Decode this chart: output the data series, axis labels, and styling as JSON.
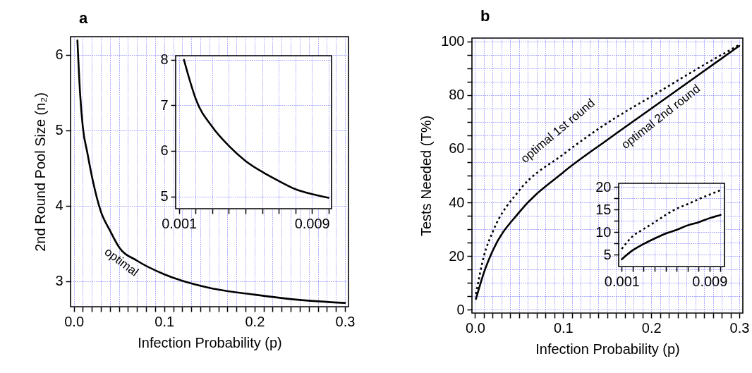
{
  "chart_data": [
    {
      "type": "line",
      "title": "a",
      "xlabel": "Infection Probability (p)",
      "ylabel": "2nd Round Pool Size (n₂)",
      "grid": true,
      "xlim": [
        -0.0036,
        0.3039
      ],
      "ylim": [
        2.66,
        6.24
      ],
      "xticks": [
        {
          "value": 0,
          "label": "0.0"
        },
        {
          "value": 0.01,
          "label": null
        },
        {
          "value": 0.02,
          "label": null
        },
        {
          "value": 0.03,
          "label": null
        },
        {
          "value": 0.04,
          "label": null
        },
        {
          "value": 0.05,
          "label": null
        },
        {
          "value": 0.06,
          "label": null
        },
        {
          "value": 0.07,
          "label": null
        },
        {
          "value": 0.08,
          "label": null
        },
        {
          "value": 0.09,
          "label": null
        },
        0.1,
        {
          "value": 0.11,
          "label": null
        },
        {
          "value": 0.12,
          "label": null
        },
        {
          "value": 0.13,
          "label": null
        },
        {
          "value": 0.14,
          "label": null
        },
        {
          "value": 0.15,
          "label": null
        },
        {
          "value": 0.16,
          "label": null
        },
        {
          "value": 0.17,
          "label": null
        },
        {
          "value": 0.18,
          "label": null
        },
        {
          "value": 0.19,
          "label": null
        },
        0.2,
        {
          "value": 0.21,
          "label": null
        },
        {
          "value": 0.22,
          "label": null
        },
        {
          "value": 0.23,
          "label": null
        },
        {
          "value": 0.24,
          "label": null
        },
        {
          "value": 0.25,
          "label": null
        },
        {
          "value": 0.26,
          "label": null
        },
        {
          "value": 0.27,
          "label": null
        },
        {
          "value": 0.28,
          "label": null
        },
        {
          "value": 0.29,
          "label": null
        },
        0.3
      ],
      "yticks": [
        3,
        4,
        5,
        6
      ],
      "series": [
        {
          "color": "#000000",
          "line_style": "solid",
          "x": [
            0.004,
            0.007,
            0.01,
            0.015,
            0.02,
            0.03,
            0.04,
            0.05,
            0.07,
            0.1,
            0.15,
            0.2,
            0.25,
            0.3
          ],
          "values": [
            6.19,
            5.48,
            5.04,
            4.7,
            4.39,
            3.92,
            3.67,
            3.45,
            3.27,
            3.09,
            2.91,
            2.82,
            2.75,
            2.71
          ]
        }
      ],
      "annotations": [
        "optimal"
      ]
    },
    {
      "type": "line",
      "grid": true,
      "xlim": [
        0.0008,
        0.01018
      ],
      "ylim": [
        4.73,
        8.09
      ],
      "xticks": [
        0.001,
        {
          "value": 0.002,
          "label": null
        },
        {
          "value": 0.003,
          "label": null
        },
        {
          "value": 0.004,
          "label": null
        },
        {
          "value": 0.005,
          "label": null
        },
        {
          "value": 0.006,
          "label": null
        },
        {
          "value": 0.007,
          "label": null
        },
        {
          "value": 0.008,
          "label": null
        },
        0.009,
        {
          "value": 0.01,
          "label": null
        }
      ],
      "yticks": [
        5,
        6,
        7,
        8
      ],
      "series": [
        {
          "color": "#000000",
          "line_style": "solid",
          "x": [
            0.0013,
            0.0016,
            0.002,
            0.003,
            0.004,
            0.005,
            0.006,
            0.007,
            0.008,
            0.009,
            0.01
          ],
          "values": [
            8.0,
            7.61,
            7.15,
            6.53,
            6.11,
            5.78,
            5.54,
            5.34,
            5.16,
            5.05,
            4.97
          ]
        }
      ]
    },
    {
      "type": "line",
      "title": "b",
      "xlabel": "Infection Probability (p)",
      "ylabel": "Tests Needed (T%)",
      "grid": true,
      "xlim": [
        -0.0036,
        0.304
      ],
      "ylim": [
        -1.3,
        101.3
      ],
      "xticks": [
        {
          "value": 0,
          "label": "0.0"
        },
        {
          "value": 0.01,
          "label": null
        },
        {
          "value": 0.02,
          "label": null
        },
        {
          "value": 0.03,
          "label": null
        },
        {
          "value": 0.04,
          "label": null
        },
        {
          "value": 0.05,
          "label": null
        },
        {
          "value": 0.06,
          "label": null
        },
        {
          "value": 0.07,
          "label": null
        },
        {
          "value": 0.08,
          "label": null
        },
        {
          "value": 0.09,
          "label": null
        },
        0.1,
        {
          "value": 0.11,
          "label": null
        },
        {
          "value": 0.12,
          "label": null
        },
        {
          "value": 0.13,
          "label": null
        },
        {
          "value": 0.14,
          "label": null
        },
        {
          "value": 0.15,
          "label": null
        },
        {
          "value": 0.16,
          "label": null
        },
        {
          "value": 0.17,
          "label": null
        },
        {
          "value": 0.18,
          "label": null
        },
        {
          "value": 0.19,
          "label": null
        },
        0.2,
        {
          "value": 0.21,
          "label": null
        },
        {
          "value": 0.22,
          "label": null
        },
        {
          "value": 0.23,
          "label": null
        },
        {
          "value": 0.24,
          "label": null
        },
        {
          "value": 0.25,
          "label": null
        },
        {
          "value": 0.26,
          "label": null
        },
        {
          "value": 0.27,
          "label": null
        },
        {
          "value": 0.28,
          "label": null
        },
        {
          "value": 0.29,
          "label": null
        },
        0.3
      ],
      "yticks": [
        0,
        {
          "value": 5,
          "label": null
        },
        {
          "value": 10,
          "label": null
        },
        {
          "value": 15,
          "label": null
        },
        20,
        {
          "value": 25,
          "label": null
        },
        {
          "value": 30,
          "label": null
        },
        {
          "value": 35,
          "label": null
        },
        40,
        {
          "value": 45,
          "label": null
        },
        {
          "value": 50,
          "label": null
        },
        {
          "value": 55,
          "label": null
        },
        60,
        {
          "value": 65,
          "label": null
        },
        {
          "value": 70,
          "label": null
        },
        {
          "value": 75,
          "label": null
        },
        80,
        {
          "value": 85,
          "label": null
        },
        {
          "value": 90,
          "label": null
        },
        {
          "value": 95,
          "label": null
        },
        100
      ],
      "series": [
        {
          "color": "#000000",
          "line_style": "dotted",
          "x": [
            0.001,
            0.01,
            0.02,
            0.05,
            0.1,
            0.15,
            0.2,
            0.25,
            0.3
          ],
          "values": [
            5.8,
            20,
            29,
            44.4,
            57.9,
            69.6,
            79.5,
            89.4,
            98.8
          ]
        },
        {
          "color": "#000000",
          "line_style": "solid",
          "x": [
            0.001,
            0.01,
            0.02,
            0.05,
            0.1,
            0.15,
            0.2,
            0.25,
            0.3
          ],
          "values": [
            4,
            13.8,
            22,
            36.3,
            51.2,
            63.3,
            75,
            86.7,
            98.4
          ]
        }
      ],
      "annotations": [
        "optimal 1st round",
        "optimal 2nd round"
      ]
    },
    {
      "type": "line",
      "grid": true,
      "xlim": [
        0.00072,
        0.01036
      ],
      "ylim": [
        2.4,
        20.8
      ],
      "xticks": [
        0.001,
        {
          "value": 0.002,
          "label": null
        },
        {
          "value": 0.003,
          "label": null
        },
        {
          "value": 0.004,
          "label": null
        },
        {
          "value": 0.005,
          "label": null
        },
        {
          "value": 0.006,
          "label": null
        },
        {
          "value": 0.007,
          "label": null
        },
        {
          "value": 0.008,
          "label": null
        },
        0.009,
        {
          "value": 0.01,
          "label": null
        }
      ],
      "yticks": [
        5,
        {
          "value": 7.5,
          "label": null
        },
        10,
        {
          "value": 12.5,
          "label": null
        },
        15,
        {
          "value": 17.5,
          "label": null
        },
        20
      ],
      "series": [
        {
          "color": "#000000",
          "line_style": "dotted",
          "x": [
            0.001,
            0.002,
            0.003,
            0.004,
            0.005,
            0.006,
            0.007,
            0.008,
            0.009,
            0.01
          ],
          "values": [
            6.3,
            9.1,
            10.7,
            12.2,
            13.8,
            15.2,
            16.2,
            17.3,
            18.3,
            19.3
          ]
        },
        {
          "color": "#000000",
          "line_style": "solid",
          "x": [
            0.001,
            0.002,
            0.003,
            0.004,
            0.005,
            0.006,
            0.007,
            0.008,
            0.009,
            0.01
          ],
          "values": [
            4.0,
            6.0,
            7.4,
            8.6,
            9.7,
            10.5,
            11.5,
            12.2,
            13.1,
            13.8
          ]
        }
      ]
    }
  ]
}
